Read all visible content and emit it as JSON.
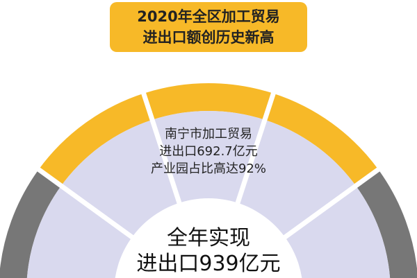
{
  "title": {
    "line1": "2020年全区加工贸易",
    "line2": "进出口额创历史新高"
  },
  "subtitle": {
    "line1": "南宁市加工贸易",
    "line2": "进出口692.7亿元",
    "line3": "产业园占比高达92%"
  },
  "center": {
    "line1": "全年实现",
    "line2": "进出口939亿元"
  },
  "colors": {
    "yellow": "#f7b928",
    "gray": "#777777",
    "lavender": "#d9d9ee",
    "text": "#222222"
  }
}
